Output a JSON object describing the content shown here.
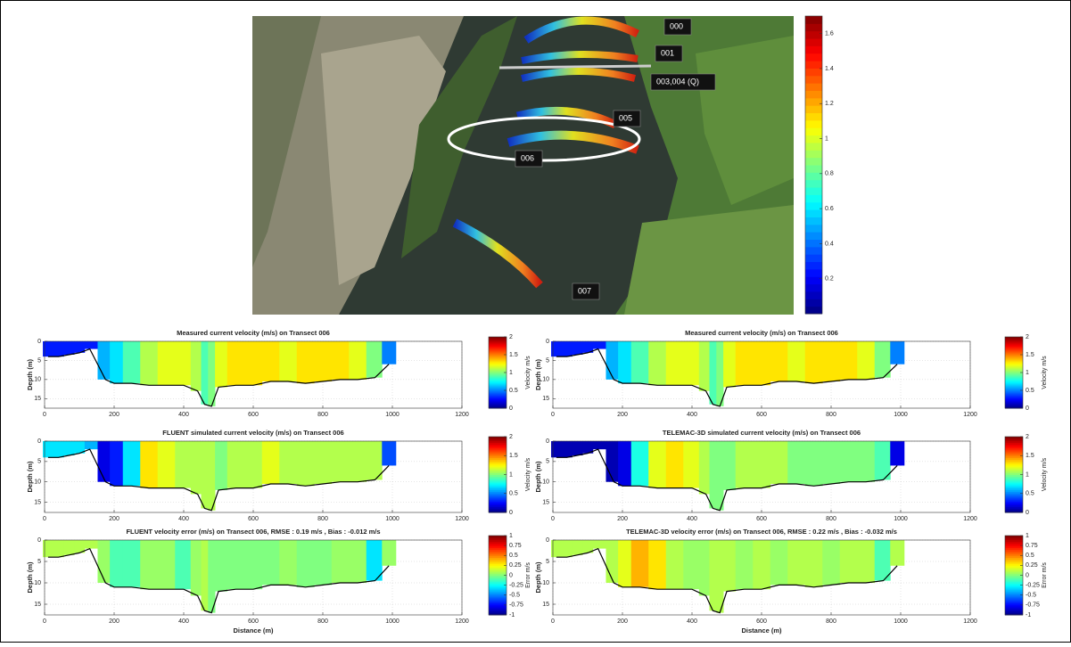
{
  "chart_data": [
    {
      "type": "map",
      "labels": [
        "000",
        "001",
        "003,004 (Q)",
        "005",
        "006",
        "007"
      ],
      "clim": [
        0,
        1.7
      ],
      "cticks": [
        0.2,
        0.4,
        0.6,
        0.8,
        1,
        1.2,
        1.4,
        1.6
      ]
    },
    {
      "type": "section",
      "title": "Measured current velocity (m/s) on Transect 006",
      "ylabel": "Depth (m)",
      "colorbar_label": "Velocity m/s",
      "x": [
        10,
        40,
        70,
        100,
        130,
        175,
        200,
        250,
        300,
        350,
        400,
        440,
        460,
        480,
        500,
        550,
        600,
        650,
        700,
        750,
        800,
        850,
        900,
        950,
        990
      ],
      "bed_depth": [
        4,
        4,
        3.5,
        3,
        2,
        10,
        11,
        11,
        11.5,
        11.5,
        11.5,
        13,
        16.5,
        17,
        12,
        11.5,
        11.5,
        10.5,
        10.5,
        11,
        10.5,
        10,
        10,
        9.5,
        6
      ],
      "values": [
        0.3,
        0.3,
        0.3,
        0.3,
        0.3,
        0.6,
        0.7,
        0.9,
        1.1,
        1.2,
        1.2,
        1.1,
        0.9,
        1.0,
        1.2,
        1.3,
        1.3,
        1.3,
        1.2,
        1.3,
        1.3,
        1.3,
        1.2,
        1.0,
        0.5
      ],
      "xlim": [
        0,
        1200
      ],
      "xticks": [
        0,
        200,
        400,
        600,
        800,
        1000,
        1200
      ],
      "ylim": [
        0,
        17.5
      ],
      "yticks": [
        0,
        5,
        10,
        15
      ],
      "yreverse": true,
      "grid": true,
      "clim": [
        0,
        2
      ],
      "cticks": [
        0,
        0.5,
        1,
        1.5,
        2
      ]
    },
    {
      "type": "section",
      "title": "Measured current velocity (m/s) on Transect 006",
      "ylabel": "Depth (m)",
      "colorbar_label": "Velocity m/s",
      "x": [
        10,
        40,
        70,
        100,
        130,
        175,
        200,
        250,
        300,
        350,
        400,
        440,
        460,
        480,
        500,
        550,
        600,
        650,
        700,
        750,
        800,
        850,
        900,
        950,
        990
      ],
      "bed_depth": [
        4,
        4,
        3.5,
        3,
        2,
        10,
        11,
        11,
        11.5,
        11.5,
        11.5,
        13,
        16.5,
        17,
        12,
        11.5,
        11.5,
        10.5,
        10.5,
        11,
        10.5,
        10,
        10,
        9.5,
        6
      ],
      "values": [
        0.3,
        0.3,
        0.3,
        0.3,
        0.3,
        0.6,
        0.7,
        0.9,
        1.1,
        1.2,
        1.2,
        1.1,
        0.9,
        1.0,
        1.2,
        1.3,
        1.3,
        1.3,
        1.2,
        1.3,
        1.3,
        1.3,
        1.2,
        1.0,
        0.5
      ],
      "xlim": [
        0,
        1200
      ],
      "xticks": [
        0,
        200,
        400,
        600,
        800,
        1000,
        1200
      ],
      "ylim": [
        0,
        17.5
      ],
      "yticks": [
        0,
        5,
        10,
        15
      ],
      "yreverse": true,
      "grid": true,
      "clim": [
        0,
        2
      ],
      "cticks": [
        0,
        0.5,
        1,
        1.5,
        2
      ]
    },
    {
      "type": "section",
      "title": "FLUENT simulated current velocity (m/s) on Transect 006",
      "ylabel": "Depth (m)",
      "colorbar_label": "Velocity m/s",
      "x": [
        10,
        40,
        70,
        100,
        130,
        175,
        200,
        250,
        300,
        350,
        400,
        440,
        460,
        480,
        500,
        550,
        600,
        650,
        700,
        750,
        800,
        850,
        900,
        950,
        990
      ],
      "bed_depth": [
        4,
        4,
        3.5,
        3,
        2,
        10,
        11,
        11,
        11.5,
        11.5,
        11.5,
        13,
        16.5,
        17,
        12,
        11.5,
        11.5,
        10.5,
        10.5,
        11,
        10.5,
        10,
        10,
        9.5,
        6
      ],
      "values": [
        0.7,
        0.7,
        0.7,
        0.7,
        0.6,
        0.2,
        0.3,
        0.7,
        1.3,
        1.2,
        1.1,
        1.1,
        1.1,
        1.1,
        1.0,
        1.1,
        1.1,
        1.2,
        1.1,
        1.1,
        1.1,
        1.1,
        1.1,
        1.1,
        0.4
      ],
      "xlim": [
        0,
        1200
      ],
      "xticks": [
        0,
        200,
        400,
        600,
        800,
        1000,
        1200
      ],
      "ylim": [
        0,
        17.5
      ],
      "yticks": [
        0,
        5,
        10,
        15
      ],
      "yreverse": true,
      "grid": true,
      "clim": [
        0,
        2
      ],
      "cticks": [
        0,
        0.5,
        1,
        1.5,
        2
      ]
    },
    {
      "type": "section",
      "title": "TELEMAC-3D simulated current velocity (m/s) on Transect 006",
      "ylabel": "Depth (m)",
      "colorbar_label": "Velocity m/s",
      "x": [
        10,
        40,
        70,
        100,
        130,
        175,
        200,
        250,
        300,
        350,
        400,
        440,
        460,
        480,
        500,
        550,
        600,
        650,
        700,
        750,
        800,
        850,
        900,
        950,
        990
      ],
      "bed_depth": [
        4,
        4,
        3.5,
        3,
        2,
        10,
        11,
        11,
        11.5,
        11.5,
        11.5,
        13,
        16.5,
        17,
        12,
        11.5,
        11.5,
        10.5,
        10.5,
        11,
        10.5,
        10,
        10,
        9.5,
        6
      ],
      "values": [
        0.1,
        0.1,
        0.1,
        0.1,
        0.1,
        0.1,
        0.2,
        0.8,
        1.2,
        1.3,
        1.2,
        1.1,
        1.0,
        1.0,
        1.0,
        1.1,
        1.1,
        1.1,
        1.0,
        1.0,
        1.0,
        1.0,
        1.0,
        0.9,
        0.2
      ],
      "xlim": [
        0,
        1200
      ],
      "xticks": [
        0,
        200,
        400,
        600,
        800,
        1000,
        1200
      ],
      "ylim": [
        0,
        17.5
      ],
      "yticks": [
        0,
        5,
        10,
        15
      ],
      "yreverse": true,
      "grid": true,
      "clim": [
        0,
        2
      ],
      "cticks": [
        0,
        0.5,
        1,
        1.5,
        2
      ]
    },
    {
      "type": "section",
      "title": "FLUENT velocity error (m/s) on Transect 006, RMSE : 0.19 m/s , Bias : -0.012 m/s",
      "ylabel": "Depth (m)",
      "xlabel": "Distance (m)",
      "colorbar_label": "Error m/s",
      "x": [
        10,
        40,
        70,
        100,
        130,
        175,
        200,
        250,
        300,
        350,
        400,
        440,
        460,
        480,
        500,
        550,
        600,
        650,
        700,
        750,
        800,
        850,
        900,
        950,
        990
      ],
      "bed_depth": [
        4,
        4,
        3.5,
        3,
        2,
        10,
        11,
        11,
        11.5,
        11.5,
        11.5,
        13,
        16.5,
        17,
        12,
        11.5,
        11.5,
        10.5,
        10.5,
        11,
        10.5,
        10,
        10,
        9.5,
        6
      ],
      "values": [
        0.1,
        0.1,
        0.1,
        0.1,
        0.1,
        0.05,
        -0.1,
        -0.1,
        0.05,
        0.05,
        -0.1,
        0.05,
        0.1,
        0,
        0,
        0,
        0,
        0,
        0.05,
        0,
        0,
        0.05,
        0.05,
        -0.3,
        0.05
      ],
      "xlim": [
        0,
        1200
      ],
      "xticks": [
        0,
        200,
        400,
        600,
        800,
        1000,
        1200
      ],
      "ylim": [
        0,
        17.5
      ],
      "yticks": [
        0,
        5,
        10,
        15
      ],
      "yreverse": true,
      "grid": true,
      "clim": [
        -1,
        1
      ],
      "cticks": [
        -1,
        -0.75,
        -0.5,
        -0.25,
        0,
        0.25,
        0.5,
        0.75,
        1
      ]
    },
    {
      "type": "section",
      "title": "TELEMAC-3D velocity error (m/s) on Transect 006, RMSE : 0.22 m/s , Bias : -0.032 m/s",
      "ylabel": "Depth (m)",
      "xlabel": "Distance (m)",
      "colorbar_label": "Error m/s",
      "x": [
        10,
        40,
        70,
        100,
        130,
        175,
        200,
        250,
        300,
        350,
        400,
        440,
        460,
        480,
        500,
        550,
        600,
        650,
        700,
        750,
        800,
        850,
        900,
        950,
        990
      ],
      "bed_depth": [
        4,
        4,
        3.5,
        3,
        2,
        10,
        11,
        11,
        11.5,
        11.5,
        11.5,
        13,
        16.5,
        17,
        12,
        11.5,
        11.5,
        10.5,
        10.5,
        11,
        10.5,
        10,
        10,
        9.5,
        6
      ],
      "values": [
        0.1,
        0.1,
        0.1,
        0.1,
        0.1,
        0.1,
        0.2,
        0.4,
        0.3,
        0.1,
        0.05,
        0.05,
        0.1,
        0.1,
        0.1,
        0.05,
        0.1,
        0.05,
        0.1,
        0.1,
        0.05,
        0.1,
        0.1,
        -0.1,
        0.1
      ],
      "xlim": [
        0,
        1200
      ],
      "xticks": [
        0,
        200,
        400,
        600,
        800,
        1000,
        1200
      ],
      "ylim": [
        0,
        17.5
      ],
      "yticks": [
        0,
        5,
        10,
        15
      ],
      "yreverse": true,
      "grid": true,
      "clim": [
        -1,
        1
      ],
      "cticks": [
        -1,
        -0.75,
        -0.5,
        -0.25,
        0,
        0.25,
        0.5,
        0.75,
        1
      ]
    }
  ]
}
